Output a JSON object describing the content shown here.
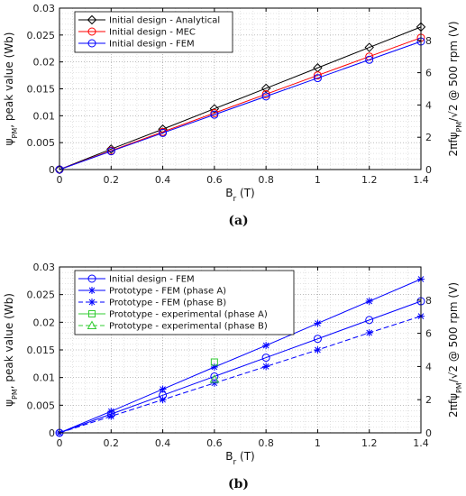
{
  "chart_data": [
    {
      "type": "line",
      "caption": "(a)",
      "xlabel_main": "B",
      "xlabel_sub": "r",
      "xlabel_unit": " (T)",
      "ylabel": "ψ_PM, peak value (Wb)",
      "y2label": "2πfψ_PM/√2 @ 500 rpm (V)",
      "xlim": [
        0,
        1.4
      ],
      "ylim": [
        0,
        0.03
      ],
      "y2lim": [
        0,
        10
      ],
      "xticks": [
        "0",
        "0.2",
        "0.4",
        "0.6",
        "0.8",
        "1",
        "1.2",
        "1.4"
      ],
      "yticks": [
        "0",
        "0.005",
        "0.01",
        "0.015",
        "0.02",
        "0.025",
        "0.03"
      ],
      "y2ticks": [
        "0",
        "2",
        "4",
        "6",
        "8"
      ],
      "grid": true,
      "legend_position": "top-left",
      "series": [
        {
          "name": "Initial design - Analytical",
          "color": "#000000",
          "marker": "diamond",
          "dash": "solid",
          "x": [
            0,
            0.2,
            0.4,
            0.6,
            0.8,
            1.0,
            1.2,
            1.4
          ],
          "y": [
            0,
            0.0038,
            0.0075,
            0.0113,
            0.0151,
            0.0189,
            0.0227,
            0.0265
          ]
        },
        {
          "name": "Initial design - MEC",
          "color": "#ff0000",
          "marker": "circle",
          "dash": "solid",
          "x": [
            0,
            0.2,
            0.4,
            0.6,
            0.8,
            1.0,
            1.2,
            1.4
          ],
          "y": [
            0,
            0.0035,
            0.007,
            0.0105,
            0.014,
            0.0175,
            0.021,
            0.0245
          ]
        },
        {
          "name": "Initial design - FEM",
          "color": "#0000ff",
          "marker": "circle",
          "dash": "solid",
          "x": [
            0,
            0.2,
            0.4,
            0.6,
            0.8,
            1.0,
            1.2,
            1.4
          ],
          "y": [
            0,
            0.0034,
            0.0068,
            0.0102,
            0.0136,
            0.017,
            0.0204,
            0.0238
          ]
        }
      ]
    },
    {
      "type": "line",
      "caption": "(b)",
      "xlabel_main": "B",
      "xlabel_sub": "r",
      "xlabel_unit": " (T)",
      "ylabel": "ψ_PM, peak value (Wb)",
      "y2label": "2πfψ_PM/√2 @ 500 rpm (V)",
      "xlim": [
        0,
        1.4
      ],
      "ylim": [
        0,
        0.03
      ],
      "y2lim": [
        0,
        10
      ],
      "xticks": [
        "0",
        "0.2",
        "0.4",
        "0.6",
        "0.8",
        "1",
        "1.2",
        "1.4"
      ],
      "yticks": [
        "0",
        "0.005",
        "0.01",
        "0.015",
        "0.02",
        "0.025",
        "0.03"
      ],
      "y2ticks": [
        "0",
        "2",
        "4",
        "6",
        "8"
      ],
      "grid": true,
      "legend_position": "top-left",
      "series": [
        {
          "name": "Initial design - FEM",
          "color": "#0000ff",
          "marker": "circle",
          "dash": "solid",
          "x": [
            0,
            0.2,
            0.4,
            0.6,
            0.8,
            1.0,
            1.2,
            1.4
          ],
          "y": [
            0,
            0.0034,
            0.0068,
            0.0102,
            0.0136,
            0.017,
            0.0204,
            0.0238
          ]
        },
        {
          "name": "Prototype - FEM (phase A)",
          "color": "#0000ff",
          "marker": "star",
          "dash": "solid",
          "x": [
            0,
            0.2,
            0.4,
            0.6,
            0.8,
            1.0,
            1.2,
            1.4
          ],
          "y": [
            0,
            0.0039,
            0.0079,
            0.0119,
            0.0158,
            0.0198,
            0.0238,
            0.0278
          ]
        },
        {
          "name": "Prototype - FEM (phase B)",
          "color": "#0000ff",
          "marker": "star",
          "dash": "dashed",
          "x": [
            0,
            0.2,
            0.4,
            0.6,
            0.8,
            1.0,
            1.2,
            1.4
          ],
          "y": [
            0,
            0.003,
            0.006,
            0.009,
            0.012,
            0.015,
            0.0181,
            0.0211
          ]
        },
        {
          "name": "Prototype - experimental (phase A)",
          "color": "#33cc33",
          "marker": "square",
          "dash": "solid",
          "x": [
            0.6
          ],
          "y": [
            0.0128
          ]
        },
        {
          "name": "Prototype - experimental (phase B)",
          "color": "#33cc33",
          "marker": "triangle",
          "dash": "dashed",
          "x": [
            0.6
          ],
          "y": [
            0.0097
          ]
        }
      ]
    }
  ]
}
